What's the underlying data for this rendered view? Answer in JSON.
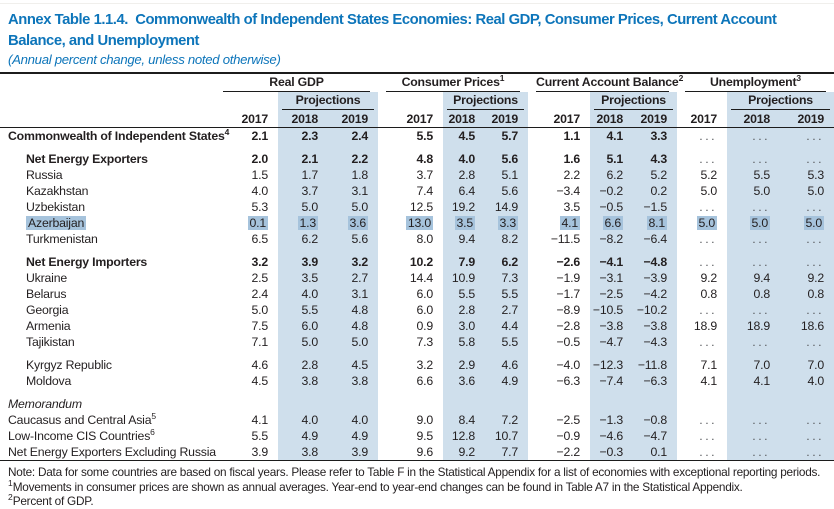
{
  "page": {
    "title": "Annex Table 1.1.4.  Commonwealth of Independent States Economies: Real GDP, Consumer Prices, Current Account Balance, and Unemployment",
    "subtitle": "(Annual percent change, unless noted otherwise)"
  },
  "table": {
    "projections_label": "Projections",
    "years": [
      "2017",
      "2018",
      "2019"
    ],
    "groups": [
      {
        "label": "Real GDP",
        "sup": ""
      },
      {
        "label": "Consumer Prices",
        "sup": "1"
      },
      {
        "label": "Current Account Balance",
        "sup": "2"
      },
      {
        "label": "Unemployment",
        "sup": "3"
      }
    ],
    "rows": [
      {
        "label": "Commonwealth of Independent States",
        "sup": "4",
        "indent": 0,
        "bold": true,
        "italic": false,
        "highlight": false,
        "gap_before": false,
        "values": [
          "2.1",
          "2.3",
          "2.4",
          "5.5",
          "4.5",
          "5.7",
          "1.1",
          "4.1",
          "3.3",
          "...",
          "...",
          "..."
        ]
      },
      {
        "label": "Net Energy Exporters",
        "sup": "",
        "indent": 1,
        "bold": true,
        "italic": false,
        "highlight": false,
        "gap_before": true,
        "values": [
          "2.0",
          "2.1",
          "2.2",
          "4.8",
          "4.0",
          "5.6",
          "1.6",
          "5.1",
          "4.3",
          "...",
          "...",
          "..."
        ]
      },
      {
        "label": "Russia",
        "sup": "",
        "indent": 1,
        "bold": false,
        "italic": false,
        "highlight": false,
        "gap_before": false,
        "values": [
          "1.5",
          "1.7",
          "1.8",
          "3.7",
          "2.8",
          "5.1",
          "2.2",
          "6.2",
          "5.2",
          "5.2",
          "5.5",
          "5.3"
        ]
      },
      {
        "label": "Kazakhstan",
        "sup": "",
        "indent": 1,
        "bold": false,
        "italic": false,
        "highlight": false,
        "gap_before": false,
        "values": [
          "4.0",
          "3.7",
          "3.1",
          "7.4",
          "6.4",
          "5.6",
          "−3.4",
          "−0.2",
          "0.2",
          "5.0",
          "5.0",
          "5.0"
        ]
      },
      {
        "label": "Uzbekistan",
        "sup": "",
        "indent": 1,
        "bold": false,
        "italic": false,
        "highlight": false,
        "gap_before": false,
        "values": [
          "5.3",
          "5.0",
          "5.0",
          "12.5",
          "19.2",
          "14.9",
          "3.5",
          "−0.5",
          "−1.5",
          "...",
          "...",
          "..."
        ]
      },
      {
        "label": "Azerbaijan",
        "sup": "",
        "indent": 1,
        "bold": false,
        "italic": false,
        "highlight": true,
        "gap_before": false,
        "values": [
          "0.1",
          "1.3",
          "3.6",
          "13.0",
          "3.5",
          "3.3",
          "4.1",
          "6.6",
          "8.1",
          "5.0",
          "5.0",
          "5.0"
        ]
      },
      {
        "label": "Turkmenistan",
        "sup": "",
        "indent": 1,
        "bold": false,
        "italic": false,
        "highlight": false,
        "gap_before": false,
        "values": [
          "6.5",
          "6.2",
          "5.6",
          "8.0",
          "9.4",
          "8.2",
          "−11.5",
          "−8.2",
          "−6.4",
          "...",
          "...",
          "..."
        ]
      },
      {
        "label": "Net Energy Importers",
        "sup": "",
        "indent": 1,
        "bold": true,
        "italic": false,
        "highlight": false,
        "gap_before": true,
        "values": [
          "3.2",
          "3.9",
          "3.2",
          "10.2",
          "7.9",
          "6.2",
          "−2.6",
          "−4.1",
          "−4.8",
          "...",
          "...",
          "..."
        ]
      },
      {
        "label": "Ukraine",
        "sup": "",
        "indent": 1,
        "bold": false,
        "italic": false,
        "highlight": false,
        "gap_before": false,
        "values": [
          "2.5",
          "3.5",
          "2.7",
          "14.4",
          "10.9",
          "7.3",
          "−1.9",
          "−3.1",
          "−3.9",
          "9.2",
          "9.4",
          "9.2"
        ]
      },
      {
        "label": "Belarus",
        "sup": "",
        "indent": 1,
        "bold": false,
        "italic": false,
        "highlight": false,
        "gap_before": false,
        "values": [
          "2.4",
          "4.0",
          "3.1",
          "6.0",
          "5.5",
          "5.5",
          "−1.7",
          "−2.5",
          "−4.2",
          "0.8",
          "0.8",
          "0.8"
        ]
      },
      {
        "label": "Georgia",
        "sup": "",
        "indent": 1,
        "bold": false,
        "italic": false,
        "highlight": false,
        "gap_before": false,
        "values": [
          "5.0",
          "5.5",
          "4.8",
          "6.0",
          "2.8",
          "2.7",
          "−8.9",
          "−10.5",
          "−10.2",
          "...",
          "...",
          "..."
        ]
      },
      {
        "label": "Armenia",
        "sup": "",
        "indent": 1,
        "bold": false,
        "italic": false,
        "highlight": false,
        "gap_before": false,
        "values": [
          "7.5",
          "6.0",
          "4.8",
          "0.9",
          "3.0",
          "4.4",
          "−2.8",
          "−3.8",
          "−3.8",
          "18.9",
          "18.9",
          "18.6"
        ]
      },
      {
        "label": "Tajikistan",
        "sup": "",
        "indent": 1,
        "bold": false,
        "italic": false,
        "highlight": false,
        "gap_before": false,
        "values": [
          "7.1",
          "5.0",
          "5.0",
          "7.3",
          "5.8",
          "5.5",
          "−0.5",
          "−4.7",
          "−4.3",
          "...",
          "...",
          "..."
        ]
      },
      {
        "label": "Kyrgyz Republic",
        "sup": "",
        "indent": 1,
        "bold": false,
        "italic": false,
        "highlight": false,
        "gap_before": true,
        "values": [
          "4.6",
          "2.8",
          "4.5",
          "3.2",
          "2.9",
          "4.6",
          "−4.0",
          "−12.3",
          "−11.8",
          "7.1",
          "7.0",
          "7.0"
        ]
      },
      {
        "label": "Moldova",
        "sup": "",
        "indent": 1,
        "bold": false,
        "italic": false,
        "highlight": false,
        "gap_before": false,
        "values": [
          "4.5",
          "3.8",
          "3.8",
          "6.6",
          "3.6",
          "4.9",
          "−6.3",
          "−7.4",
          "−6.3",
          "4.1",
          "4.1",
          "4.0"
        ]
      },
      {
        "label": "Memorandum",
        "sup": "",
        "indent": 0,
        "bold": false,
        "italic": true,
        "highlight": false,
        "gap_before": true,
        "values": null
      },
      {
        "label": "Caucasus and Central Asia",
        "sup": "5",
        "indent": 0,
        "bold": false,
        "italic": false,
        "highlight": false,
        "gap_before": false,
        "values": [
          "4.1",
          "4.0",
          "4.0",
          "9.0",
          "8.4",
          "7.2",
          "−2.5",
          "−1.3",
          "−0.8",
          "...",
          "...",
          "..."
        ]
      },
      {
        "label": "Low-Income CIS Countries",
        "sup": "6",
        "indent": 0,
        "bold": false,
        "italic": false,
        "highlight": false,
        "gap_before": false,
        "values": [
          "5.5",
          "4.9",
          "4.9",
          "9.5",
          "12.8",
          "10.7",
          "−0.9",
          "−4.6",
          "−4.7",
          "...",
          "...",
          "..."
        ]
      },
      {
        "label": "Net Energy Exporters Excluding Russia",
        "sup": "",
        "indent": 0,
        "bold": false,
        "italic": false,
        "highlight": false,
        "gap_before": false,
        "values": [
          "3.9",
          "3.8",
          "3.9",
          "9.6",
          "9.2",
          "7.7",
          "−2.2",
          "−0.3",
          "0.1",
          "...",
          "...",
          "..."
        ]
      }
    ]
  },
  "footnotes": {
    "note": "Note: Data for some countries are based on fiscal years. Please refer to Table F in the Statistical Appendix for a list of economies with exceptional reporting periods.",
    "items": [
      {
        "sup": "1",
        "text": "Movements in consumer prices are shown as annual averages. Year-end to year-end changes can be found in Table A7 in the Statistical Appendix."
      },
      {
        "sup": "2",
        "text": "Percent of GDP."
      }
    ]
  },
  "colors": {
    "title_blue": "#0d75ba",
    "projection_band": "#cfdfec",
    "highlight_blue": "#a6c3dc",
    "text_ink": "#231f20",
    "dots_gray": "#55575b"
  }
}
